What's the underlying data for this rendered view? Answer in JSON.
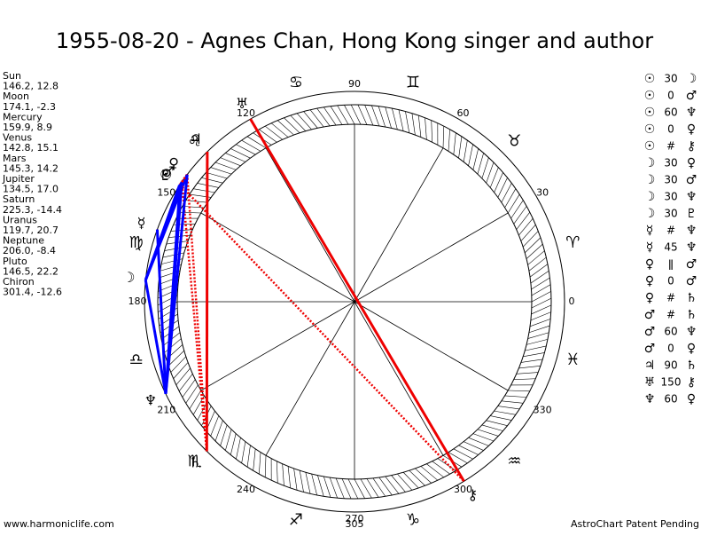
{
  "title": "1955-08-20 - Agnes Chan, Hong Kong singer and author",
  "planets": [
    {
      "name": "Sun",
      "position": "146.2, 12.8",
      "glyph": "☉"
    },
    {
      "name": "Moon",
      "position": "174.1, -2.3",
      "glyph": "☽"
    },
    {
      "name": "Mercury",
      "position": "159.9, 8.9",
      "glyph": "☿"
    },
    {
      "name": "Venus",
      "position": "142.8, 15.1",
      "glyph": "♀"
    },
    {
      "name": "Mars",
      "position": "145.3, 14.2",
      "glyph": "♂"
    },
    {
      "name": "Jupiter",
      "position": "134.5, 17.0",
      "glyph": "♃"
    },
    {
      "name": "Saturn",
      "position": "225.3, -14.4",
      "glyph": "♄"
    },
    {
      "name": "Uranus",
      "position": "119.7, 20.7",
      "glyph": "♅"
    },
    {
      "name": "Neptune",
      "position": "206.0, -8.4",
      "glyph": "♆"
    },
    {
      "name": "Pluto",
      "position": "146.5, 22.2",
      "glyph": "♇"
    },
    {
      "name": "Chiron",
      "position": "301.4, -12.6",
      "glyph": "⚷"
    }
  ],
  "signs": [
    "♈",
    "♉",
    "♊",
    "♋",
    "♌",
    "♍",
    "♎",
    "♏",
    "♐",
    "♑",
    "♒",
    "♓"
  ],
  "degree_labels": [
    0,
    30,
    60,
    90,
    120,
    150,
    180,
    210,
    240,
    270,
    300,
    330
  ],
  "aspects": [
    {
      "from": "☉",
      "aspect": "30",
      "to": "☽"
    },
    {
      "from": "☉",
      "aspect": "0",
      "to": "♂"
    },
    {
      "from": "☉",
      "aspect": "60",
      "to": "♆"
    },
    {
      "from": "☉",
      "aspect": "0",
      "to": "♀"
    },
    {
      "from": "☉",
      "aspect": "#",
      "to": "⚷"
    },
    {
      "from": "☽",
      "aspect": "30",
      "to": "♀"
    },
    {
      "from": "☽",
      "aspect": "30",
      "to": "♂"
    },
    {
      "from": "☽",
      "aspect": "30",
      "to": "♆"
    },
    {
      "from": "☽",
      "aspect": "30",
      "to": "♇"
    },
    {
      "from": "☿",
      "aspect": "#",
      "to": "♆"
    },
    {
      "from": "☿",
      "aspect": "45",
      "to": "♆"
    },
    {
      "from": "♀",
      "aspect": "ǁ",
      "to": "♂"
    },
    {
      "from": "♀",
      "aspect": "0",
      "to": "♂"
    },
    {
      "from": "♀",
      "aspect": "#",
      "to": "♄"
    },
    {
      "from": "♂",
      "aspect": "#",
      "to": "♄"
    },
    {
      "from": "♂",
      "aspect": "60",
      "to": "♆"
    },
    {
      "from": "♂",
      "aspect": "0",
      "to": "♀"
    },
    {
      "from": "♃",
      "aspect": "90",
      "to": "♄"
    },
    {
      "from": "♅",
      "aspect": "150",
      "to": "⚷"
    },
    {
      "from": "♆",
      "aspect": "60",
      "to": "♀"
    }
  ],
  "footer": {
    "left": "www.harmoniclife.com",
    "center": "305",
    "right": "AstroChart Patent Pending"
  }
}
